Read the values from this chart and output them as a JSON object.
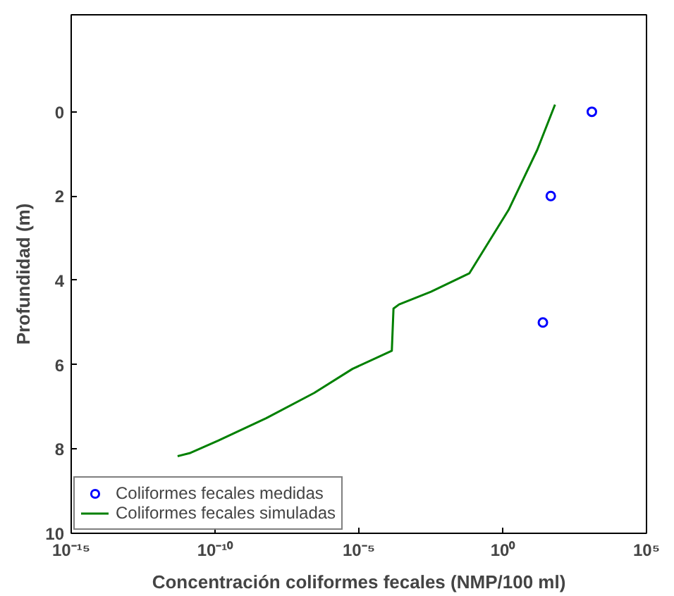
{
  "chart_data": {
    "type": "line",
    "xlabel": "Concentración coliformes fecales (NMP/100 ml)",
    "ylabel": "Profundidad (m)",
    "log": "x",
    "xlim": [
      1e-15,
      100000.0
    ],
    "ylim": [
      10,
      -2.3
    ],
    "xticks": [
      {
        "value": 1e-15,
        "label": "10⁻¹⁵"
      },
      {
        "value": 1e-10,
        "label": "10⁻¹⁰"
      },
      {
        "value": 1e-05,
        "label": "10⁻⁵"
      },
      {
        "value": 1,
        "label": "10⁰"
      },
      {
        "value": 100000,
        "label": "10⁵"
      }
    ],
    "yticks": [
      0,
      2,
      4,
      6,
      8,
      10
    ],
    "grid": false,
    "legend": "bottom left",
    "series": [
      {
        "name": "Coliformes fecales medidas",
        "type": "scatter",
        "marker": "circle",
        "color": "#0000ff",
        "x": [
          1260,
          47,
          25
        ],
        "values": [
          0,
          2,
          5
        ]
      },
      {
        "name": "Coliformes fecales simuladas",
        "line_style": "solid",
        "color": "#008000",
        "x": [
          5e-12,
          1.3e-11,
          1.3e-10,
          6e-09,
          2.8e-07,
          6e-06,
          0.00014,
          0.00016,
          0.00025,
          0.0032,
          0.07,
          1.6,
          16,
          66
        ],
        "values": [
          8.17,
          8.1,
          7.8,
          7.27,
          6.67,
          6.1,
          5.67,
          4.67,
          4.57,
          4.27,
          3.83,
          2.33,
          0.9,
          -0.17
        ]
      }
    ]
  }
}
